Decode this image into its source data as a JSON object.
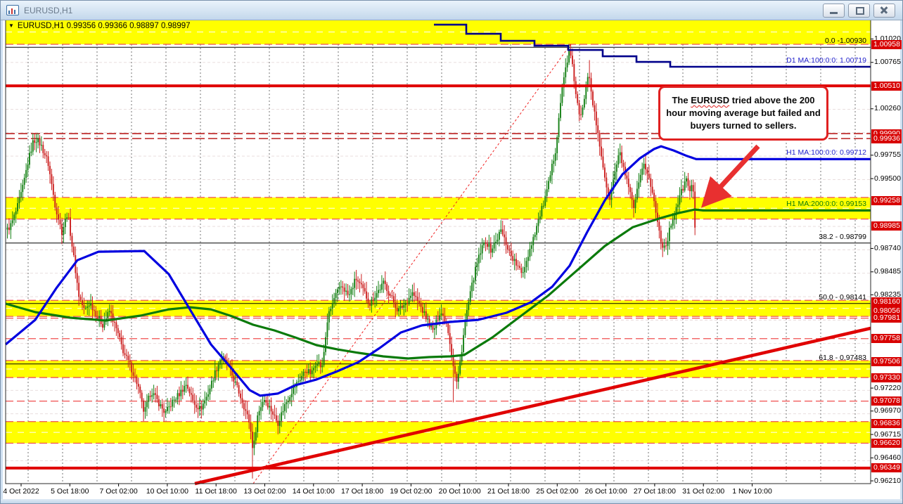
{
  "window": {
    "title": "EURUSD,H1",
    "controls": {
      "minimize": "Minimize",
      "restore": "Restore",
      "close": "Close"
    }
  },
  "quote": {
    "icon": "▼",
    "symbol": "EURUSD,H1",
    "open": "0.99356",
    "high": "0.99366",
    "low": "0.98897",
    "close": "0.98997"
  },
  "annotation": {
    "prefix": "The ",
    "highlight": "EURUSD",
    "rest": " tried above the 200 hour moving average but failed and buyers turned to sellers."
  },
  "colors": {
    "band_yellow": "#ffff00",
    "level_red": "#e00000",
    "badge_red": "#d80000",
    "candle_up": "#158015",
    "candle_down": "#cc2020",
    "ma100_blue": "#0000e0",
    "ma200_green": "#0b7a0b",
    "d1_navy": "#00008b",
    "fib_black": "#000000",
    "arrow_red": "#e83030"
  },
  "chart_data": {
    "type": "candlestick",
    "symbol": "EURUSD",
    "timeframe": "H1",
    "ylim": [
      0.9618,
      1.0123
    ],
    "price_axis_labels": [
      {
        "value": "1.01020",
        "badge": false
      },
      {
        "value": "1.00958",
        "badge": true
      },
      {
        "value": "1.00765",
        "badge": false
      },
      {
        "value": "1.00510",
        "badge": true
      },
      {
        "value": "1.00260",
        "badge": false
      },
      {
        "value": "0.99990",
        "badge": true
      },
      {
        "value": "0.99936",
        "badge": true
      },
      {
        "value": "0.99755",
        "badge": false
      },
      {
        "value": "0.99500",
        "badge": false
      },
      {
        "value": "0.99258",
        "badge": true
      },
      {
        "value": "0.98985",
        "badge": true
      },
      {
        "value": "0.98740",
        "badge": false
      },
      {
        "value": "0.98485",
        "badge": false
      },
      {
        "value": "0.98235",
        "badge": false
      },
      {
        "value": "0.98160",
        "badge": true
      },
      {
        "value": "0.98056",
        "badge": true
      },
      {
        "value": "0.97981",
        "badge": true
      },
      {
        "value": "0.97758",
        "badge": true
      },
      {
        "value": "0.97506",
        "badge": true
      },
      {
        "value": "0.97330",
        "badge": true
      },
      {
        "value": "0.97220",
        "badge": false
      },
      {
        "value": "0.97078",
        "badge": true
      },
      {
        "value": "0.96970",
        "badge": false
      },
      {
        "value": "0.96836",
        "badge": true
      },
      {
        "value": "0.96715",
        "badge": false
      },
      {
        "value": "0.96620",
        "badge": true
      },
      {
        "value": "0.96460",
        "badge": false
      },
      {
        "value": "0.96349",
        "badge": true
      },
      {
        "value": "0.96210",
        "badge": false
      }
    ],
    "time_axis_labels": [
      "4 Oct 2022",
      "5 Oct 18:00",
      "7 Oct 02:00",
      "10 Oct 10:00",
      "11 Oct 18:00",
      "13 Oct 02:00",
      "14 Oct 10:00",
      "17 Oct 18:00",
      "19 Oct 02:00",
      "20 Oct 10:00",
      "21 Oct 18:00",
      "25 Oct 02:00",
      "26 Oct 10:00",
      "27 Oct 18:00",
      "31 Oct 02:00",
      "1 Nov 10:00"
    ],
    "yellow_bands": [
      [
        1.01235,
        1.00962
      ],
      [
        0.99295,
        0.9906
      ],
      [
        0.98175,
        0.98
      ],
      [
        0.9752,
        0.97335
      ],
      [
        0.96855,
        0.9662
      ]
    ],
    "solid_red_levels": [
      1.0051,
      0.96349
    ],
    "dashed_red_levels_dark": [
      0.9999,
      0.99936
    ],
    "dashed_red_levels": [
      0.97981,
      0.97758,
      0.97078
    ],
    "fib_levels": [
      {
        "label": "0.0 -1.00930",
        "price": 1.0093
      },
      {
        "label": "38.2 - 0.98799",
        "price": 0.98799
      },
      {
        "label": "50.0 - 0.98141",
        "price": 0.98141
      },
      {
        "label": "61.8 - 0.97483",
        "price": 0.97483
      }
    ],
    "ma_lines": [
      {
        "label": "D1 MA:100:0:0: 1.00719",
        "value": 1.00719,
        "color": "#2222cc"
      },
      {
        "label": "H1 MA:100:0:0: 0.99712",
        "value": 0.99712,
        "color": "#2222cc"
      },
      {
        "label": "H1 MA:200:0:0: 0.99153",
        "value": 0.99153,
        "color": "#0b7a0b"
      }
    ],
    "trend_line_solid": [
      [
        277,
        0.9618
      ],
      [
        1238,
        0.97871
      ]
    ],
    "trend_line_dotted": [
      [
        360,
        0.9618
      ],
      [
        812,
        1.00969
      ]
    ],
    "d1_ma_steps": [
      [
        617,
        1.01176
      ],
      [
        663,
        1.01176
      ],
      [
        663,
        1.01076
      ],
      [
        712,
        1.01076
      ],
      [
        712,
        1.01
      ],
      [
        760,
        1.01
      ],
      [
        760,
        1.00946
      ],
      [
        808,
        1.00946
      ],
      [
        808,
        1.009
      ],
      [
        857,
        1.009
      ],
      [
        857,
        1.00831
      ],
      [
        905,
        1.00831
      ],
      [
        905,
        1.0077
      ],
      [
        953,
        1.0077
      ],
      [
        953,
        1.00717
      ],
      [
        1238,
        1.00717
      ]
    ],
    "h1_ma100_path": [
      [
        8,
        0.97695
      ],
      [
        50,
        0.97962
      ],
      [
        80,
        0.98306
      ],
      [
        110,
        0.98612
      ],
      [
        140,
        0.98704
      ],
      [
        205,
        0.98712
      ],
      [
        240,
        0.9846
      ],
      [
        270,
        0.98077
      ],
      [
        300,
        0.97695
      ],
      [
        330,
        0.97427
      ],
      [
        355,
        0.97198
      ],
      [
        370,
        0.97137
      ],
      [
        395,
        0.9716
      ],
      [
        420,
        0.97251
      ],
      [
        450,
        0.97313
      ],
      [
        480,
        0.97404
      ],
      [
        510,
        0.97504
      ],
      [
        540,
        0.97657
      ],
      [
        570,
        0.97825
      ],
      [
        600,
        0.97902
      ],
      [
        640,
        0.9794
      ],
      [
        680,
        0.97963
      ],
      [
        720,
        0.98039
      ],
      [
        755,
        0.98154
      ],
      [
        785,
        0.98322
      ],
      [
        810,
        0.98552
      ],
      [
        835,
        0.98919
      ],
      [
        860,
        0.99263
      ],
      [
        885,
        0.99546
      ],
      [
        910,
        0.99722
      ],
      [
        930,
        0.99822
      ],
      [
        940,
        0.99852
      ],
      [
        958,
        0.99806
      ],
      [
        975,
        0.99752
      ],
      [
        990,
        0.99712
      ],
      [
        1238,
        0.99712
      ]
    ],
    "h1_ma200_path": [
      [
        8,
        0.98139
      ],
      [
        50,
        0.98047
      ],
      [
        100,
        0.97986
      ],
      [
        150,
        0.97955
      ],
      [
        200,
        0.98009
      ],
      [
        240,
        0.98077
      ],
      [
        270,
        0.981
      ],
      [
        300,
        0.98077
      ],
      [
        330,
        0.98001
      ],
      [
        360,
        0.97909
      ],
      [
        390,
        0.97848
      ],
      [
        420,
        0.97771
      ],
      [
        450,
        0.97687
      ],
      [
        480,
        0.97641
      ],
      [
        510,
        0.97603
      ],
      [
        545,
        0.97565
      ],
      [
        580,
        0.97542
      ],
      [
        610,
        0.97557
      ],
      [
        640,
        0.97565
      ],
      [
        660,
        0.9758
      ],
      [
        700,
        0.97771
      ],
      [
        740,
        0.98001
      ],
      [
        780,
        0.9823
      ],
      [
        820,
        0.98498
      ],
      [
        860,
        0.98766
      ],
      [
        900,
        0.98972
      ],
      [
        940,
        0.99072
      ],
      [
        965,
        0.99125
      ],
      [
        988,
        0.99163
      ],
      [
        1000,
        0.99153
      ],
      [
        1238,
        0.99153
      ]
    ],
    "price_path": [
      [
        8,
        0.9892
      ],
      [
        16,
        0.99
      ],
      [
        24,
        0.9917
      ],
      [
        32,
        0.9939
      ],
      [
        40,
        0.9969
      ],
      [
        47,
        0.999
      ],
      [
        52,
        0.9993
      ],
      [
        58,
        0.99867
      ],
      [
        68,
        0.99684
      ],
      [
        78,
        0.99225
      ],
      [
        88,
        0.98919
      ],
      [
        96,
        0.99133
      ],
      [
        104,
        0.98689
      ],
      [
        112,
        0.9823
      ],
      [
        120,
        0.98062
      ],
      [
        128,
        0.98154
      ],
      [
        136,
        0.98031
      ],
      [
        146,
        0.97909
      ],
      [
        156,
        0.98062
      ],
      [
        166,
        0.97848
      ],
      [
        176,
        0.97603
      ],
      [
        186,
        0.9745
      ],
      [
        196,
        0.97251
      ],
      [
        205,
        0.96945
      ],
      [
        215,
        0.9719
      ],
      [
        225,
        0.97067
      ],
      [
        235,
        0.96945
      ],
      [
        245,
        0.97067
      ],
      [
        255,
        0.97159
      ],
      [
        265,
        0.97266
      ],
      [
        275,
        0.97067
      ],
      [
        285,
        0.96991
      ],
      [
        295,
        0.97144
      ],
      [
        305,
        0.97373
      ],
      [
        315,
        0.97572
      ],
      [
        325,
        0.9745
      ],
      [
        335,
        0.97266
      ],
      [
        345,
        0.97067
      ],
      [
        355,
        0.96838
      ],
      [
        360,
        0.96532
      ],
      [
        366,
        0.96914
      ],
      [
        375,
        0.97113
      ],
      [
        385,
        0.96991
      ],
      [
        395,
        0.96838
      ],
      [
        405,
        0.97037
      ],
      [
        415,
        0.9719
      ],
      [
        425,
        0.97305
      ],
      [
        435,
        0.97419
      ],
      [
        443,
        0.97373
      ],
      [
        450,
        0.97526
      ],
      [
        458,
        0.97434
      ],
      [
        466,
        0.97985
      ],
      [
        476,
        0.98215
      ],
      [
        486,
        0.98337
      ],
      [
        496,
        0.98215
      ],
      [
        506,
        0.98414
      ],
      [
        516,
        0.98291
      ],
      [
        526,
        0.98138
      ],
      [
        536,
        0.9826
      ],
      [
        546,
        0.98368
      ],
      [
        556,
        0.98215
      ],
      [
        566,
        0.98062
      ],
      [
        576,
        0.98138
      ],
      [
        586,
        0.9826
      ],
      [
        596,
        0.98138
      ],
      [
        606,
        0.97985
      ],
      [
        616,
        0.97832
      ],
      [
        626,
        0.98062
      ],
      [
        636,
        0.97909
      ],
      [
        645,
        0.9745
      ],
      [
        650,
        0.97259
      ],
      [
        656,
        0.97603
      ],
      [
        662,
        0.97985
      ],
      [
        668,
        0.98215
      ],
      [
        674,
        0.98444
      ],
      [
        682,
        0.98674
      ],
      [
        690,
        0.98827
      ],
      [
        698,
        0.9872
      ],
      [
        706,
        0.98827
      ],
      [
        712,
        0.98942
      ],
      [
        718,
        0.98827
      ],
      [
        726,
        0.98674
      ],
      [
        734,
        0.98567
      ],
      [
        742,
        0.9846
      ],
      [
        748,
        0.98597
      ],
      [
        754,
        0.9875
      ],
      [
        760,
        0.98903
      ],
      [
        766,
        0.99056
      ],
      [
        772,
        0.99209
      ],
      [
        778,
        0.99362
      ],
      [
        784,
        0.99592
      ],
      [
        790,
        0.99821
      ],
      [
        795,
        1.00204
      ],
      [
        800,
        1.0051
      ],
      [
        805,
        1.0074
      ],
      [
        810,
        1.00893
      ],
      [
        815,
        1.00663
      ],
      [
        820,
        1.00357
      ],
      [
        825,
        1.00127
      ],
      [
        829,
        1.0028
      ],
      [
        833,
        1.0051
      ],
      [
        837,
        1.00701
      ],
      [
        841,
        1.00433
      ],
      [
        846,
        1.00166
      ],
      [
        851,
        0.99936
      ],
      [
        856,
        0.99707
      ],
      [
        861,
        0.99477
      ],
      [
        866,
        0.99248
      ],
      [
        871,
        0.99439
      ],
      [
        876,
        0.9963
      ],
      [
        881,
        0.99783
      ],
      [
        886,
        0.9963
      ],
      [
        891,
        0.99477
      ],
      [
        896,
        0.99324
      ],
      [
        901,
        0.99171
      ],
      [
        906,
        0.99362
      ],
      [
        911,
        0.99515
      ],
      [
        916,
        0.99668
      ],
      [
        921,
        0.99554
      ],
      [
        926,
        0.99401
      ],
      [
        931,
        0.99209
      ],
      [
        936,
        0.9898
      ],
      [
        941,
        0.98789
      ],
      [
        946,
        0.9875
      ],
      [
        951,
        0.98903
      ],
      [
        956,
        0.99056
      ],
      [
        961,
        0.99171
      ],
      [
        966,
        0.99286
      ],
      [
        971,
        0.99401
      ],
      [
        976,
        0.99485
      ],
      [
        981,
        0.99378
      ],
      [
        985,
        0.99439
      ],
      [
        988,
        0.98995
      ]
    ],
    "spikes": [
      {
        "x": 47,
        "high": 0.9999
      },
      {
        "x": 52,
        "high": 0.99985
      },
      {
        "x": 205,
        "low": 0.9686
      },
      {
        "x": 360,
        "low": 0.96235
      },
      {
        "x": 645,
        "low": 0.97065
      },
      {
        "x": 810,
        "high": 1.0093
      },
      {
        "x": 815,
        "high": 1.009
      },
      {
        "x": 837,
        "high": 1.0079
      },
      {
        "x": 976,
        "high": 0.995
      },
      {
        "x": 988,
        "low": 0.98897
      }
    ]
  }
}
